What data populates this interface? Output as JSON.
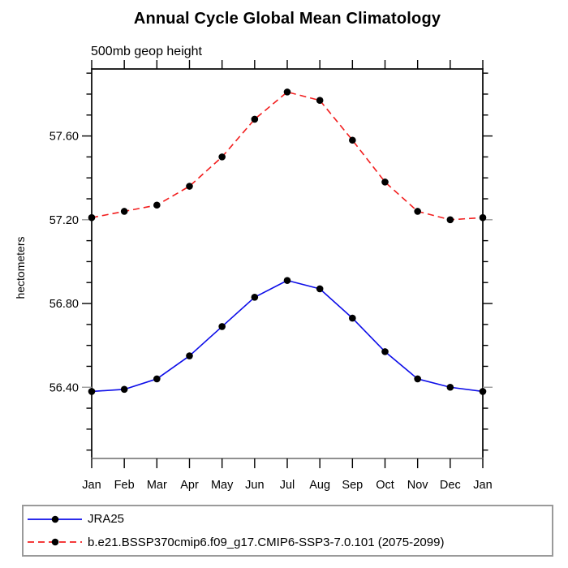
{
  "chart_data": {
    "type": "line",
    "title": "Annual Cycle Global Mean Climatology",
    "subtitle": "500mb geop height",
    "ylabel": "hectometers",
    "xlabel": "",
    "categories": [
      "Jan",
      "Feb",
      "Mar",
      "Apr",
      "May",
      "Jun",
      "Jul",
      "Aug",
      "Sep",
      "Oct",
      "Nov",
      "Dec",
      "Jan"
    ],
    "series": [
      {
        "name": "JRA25",
        "color": "#0d0de8",
        "line_style": "solid",
        "marker": "filled-circle",
        "marker_color": "#000000",
        "values": [
          56.38,
          56.39,
          56.44,
          56.55,
          56.69,
          56.83,
          56.91,
          56.87,
          56.73,
          56.57,
          56.44,
          56.4,
          56.38
        ]
      },
      {
        "name": "b.e21.BSSP370cmip6.f09_g17.CMIP6-SSP3-7.0.101 (2075-2099)",
        "color": "#f21e1e",
        "line_style": "dashed",
        "marker": "filled-circle",
        "marker_color": "#000000",
        "values": [
          57.21,
          57.24,
          57.27,
          57.36,
          57.5,
          57.68,
          57.81,
          57.77,
          57.58,
          57.38,
          57.24,
          57.2,
          57.21
        ]
      }
    ],
    "ylim": [
      56.06,
      57.92
    ],
    "yticks_major": [
      56.4,
      56.8,
      57.2,
      57.6
    ],
    "ytick_minor_step": 0.1,
    "ytick_label_decimals": 2,
    "grid": false,
    "axis_color": "#000000",
    "muted_axis_color": "#9a9a9a",
    "legend_position": "bottom"
  }
}
